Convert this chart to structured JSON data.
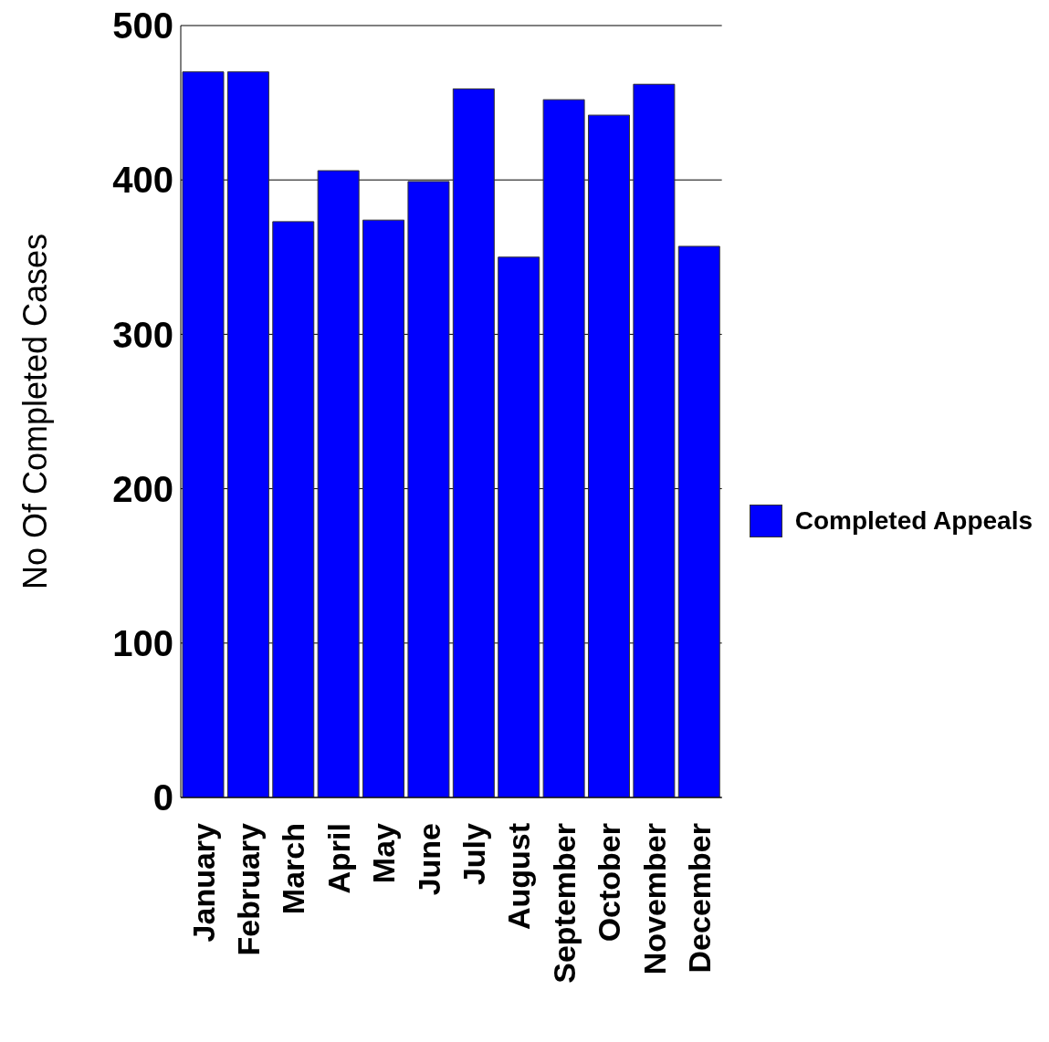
{
  "chart_data": {
    "type": "bar",
    "ylabel": "No Of Completed Cases",
    "categories": [
      "January",
      "February",
      "March",
      "April",
      "May",
      "June",
      "July",
      "August",
      "September",
      "October",
      "November",
      "December"
    ],
    "series": [
      {
        "name": "Completed Appeals",
        "color": "#0000ff",
        "values": [
          470,
          470,
          373,
          406,
          374,
          399,
          459,
          350,
          452,
          442,
          462,
          357
        ]
      }
    ],
    "ylim": [
      0,
      500
    ],
    "yticks": [
      0,
      100,
      200,
      300,
      400,
      500
    ],
    "grid": "y",
    "legend": "right"
  }
}
